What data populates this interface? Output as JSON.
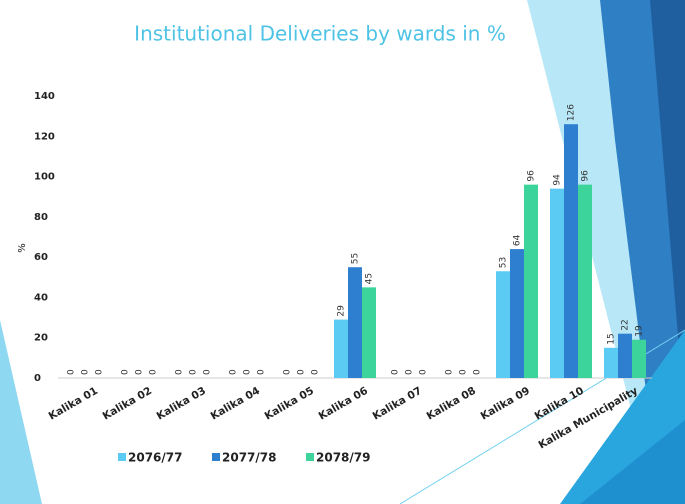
{
  "chart_data": {
    "type": "bar",
    "title": "Institutional Deliveries by wards in %",
    "y_label": "%",
    "categories": [
      "Kalika 01",
      "Kalika 02",
      "Kalika 03",
      "Kalika 04",
      "Kalika 05",
      "Kalika 06",
      "Kalika 07",
      "Kalika 08",
      "Kalika 09",
      "Kalika 10",
      "Kalika Municipality"
    ],
    "series": [
      {
        "name": "2076/77",
        "color": "#5ccbf4",
        "values": [
          0,
          0,
          0,
          0,
          0,
          29,
          0,
          0,
          53,
          94,
          15
        ]
      },
      {
        "name": "2077/78",
        "color": "#2f7fd1",
        "values": [
          0,
          0,
          0,
          0,
          0,
          55,
          0,
          0,
          64,
          126,
          22
        ]
      },
      {
        "name": "2078/79",
        "color": "#3dd49b",
        "values": [
          0,
          0,
          0,
          0,
          0,
          45,
          0,
          0,
          96,
          96,
          19
        ]
      }
    ],
    "ylim": [
      0,
      140
    ],
    "yticks": [
      0,
      20,
      40,
      60,
      80,
      100,
      120,
      140
    ],
    "grid": false,
    "legend": "bottom"
  }
}
